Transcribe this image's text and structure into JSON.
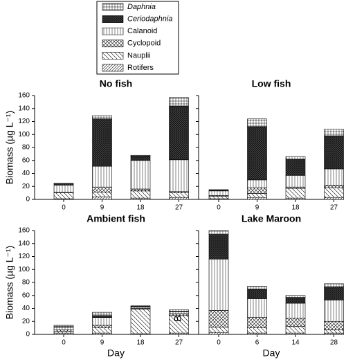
{
  "chart_data": [
    {
      "type": "stacked-bar",
      "title": "No fish",
      "ylabel": "Biomass (µg L⁻¹)",
      "categories": [
        "0",
        "9",
        "18",
        "27"
      ],
      "ylim": [
        0,
        160
      ],
      "yticks": [
        0,
        20,
        40,
        60,
        80,
        100,
        120,
        140,
        160
      ],
      "series": [
        {
          "name": "Rotifers",
          "pattern": "diagonal",
          "values": [
            1,
            4,
            2,
            3
          ]
        },
        {
          "name": "Nauplii",
          "pattern": "back-diagonal",
          "values": [
            9,
            7,
            11,
            7
          ]
        },
        {
          "name": "Cyclopoid",
          "pattern": "crosshatch",
          "values": [
            1,
            8,
            3,
            2
          ]
        },
        {
          "name": "Calanoid",
          "pattern": "vertical",
          "values": [
            11,
            32,
            44,
            49
          ]
        },
        {
          "name": "Ceriodaphnia",
          "pattern": "dense-crosshatch",
          "italic": true,
          "values": [
            2,
            73,
            7,
            83
          ]
        },
        {
          "name": "Daphnia",
          "pattern": "grid",
          "italic": true,
          "values": [
            1,
            5,
            1,
            13
          ]
        }
      ]
    },
    {
      "type": "stacked-bar",
      "title": "Low fish",
      "categories": [
        "0",
        "9",
        "18",
        "27"
      ],
      "ylim": [
        0,
        160
      ],
      "yticks": [
        0,
        20,
        40,
        60,
        80,
        100,
        120,
        140,
        160
      ],
      "series": [
        {
          "values": [
            1,
            3,
            2,
            3
          ]
        },
        {
          "values": [
            4,
            6,
            15,
            15
          ]
        },
        {
          "values": [
            1,
            9,
            2,
            4
          ]
        },
        {
          "values": [
            7,
            12,
            18,
            25
          ]
        },
        {
          "values": [
            1,
            82,
            25,
            51
          ]
        },
        {
          "values": [
            1,
            12,
            4,
            10
          ]
        }
      ]
    },
    {
      "type": "stacked-bar",
      "title": "Ambient fish",
      "ylabel": "Biomass (µg L⁻¹)",
      "xlabel": "Day",
      "annotation": "B",
      "categories": [
        "0",
        "9",
        "18",
        "27"
      ],
      "ylim": [
        0,
        160
      ],
      "yticks": [
        0,
        20,
        40,
        60,
        80,
        100,
        120,
        140,
        160
      ],
      "series": [
        {
          "values": [
            2,
            2,
            1,
            2
          ]
        },
        {
          "values": [
            3,
            8,
            38,
            27
          ]
        },
        {
          "values": [
            2,
            4,
            1,
            3
          ]
        },
        {
          "values": [
            4,
            12,
            2,
            3
          ]
        },
        {
          "values": [
            1,
            3,
            1,
            1
          ]
        },
        {
          "values": [
            2,
            5,
            1,
            2
          ]
        }
      ]
    },
    {
      "type": "stacked-bar",
      "title": "Lake Maroon",
      "xlabel": "Day",
      "categories": [
        "0",
        "6",
        "14",
        "28"
      ],
      "ylim": [
        0,
        160
      ],
      "yticks": [
        0,
        20,
        40,
        60,
        80,
        100,
        120,
        140,
        160
      ],
      "series": [
        {
          "values": [
            3,
            2,
            2,
            2
          ]
        },
        {
          "values": [
            8,
            8,
            10,
            5
          ]
        },
        {
          "values": [
            26,
            16,
            13,
            13
          ]
        },
        {
          "values": [
            79,
            29,
            23,
            33
          ]
        },
        {
          "values": [
            38,
            15,
            9,
            20
          ]
        },
        {
          "values": [
            6,
            4,
            3,
            5
          ]
        }
      ]
    }
  ]
}
